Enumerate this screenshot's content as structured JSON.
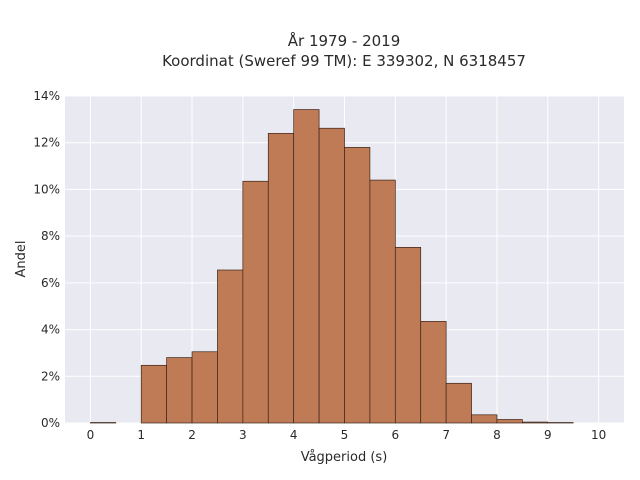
{
  "chart_data": {
    "type": "bar",
    "title_line1": "År 1979 - 2019",
    "title_line2": "Koordinat (Sweref 99 TM): E 339302, N 6318457",
    "xlabel": "Vågperiod (s)",
    "ylabel": "Andel",
    "bin_width": 0.5,
    "bin_starts": [
      0,
      0.5,
      1,
      1.5,
      2,
      2.5,
      3,
      3.5,
      4,
      4.5,
      5,
      5.5,
      6,
      6.5,
      7,
      7.5,
      8,
      8.5,
      9,
      9.5
    ],
    "values": [
      0.02,
      0,
      2.47,
      2.8,
      3.05,
      6.55,
      10.35,
      12.4,
      13.42,
      12.62,
      11.8,
      10.4,
      7.52,
      4.35,
      1.7,
      0.35,
      0.15,
      0.04,
      0.02,
      0
    ],
    "xlim": [
      -0.5,
      10.5
    ],
    "ylim": [
      0,
      14
    ],
    "x_ticks": [
      0,
      1,
      2,
      3,
      4,
      5,
      6,
      7,
      8,
      9,
      10
    ],
    "y_ticks": [
      0,
      2,
      4,
      6,
      8,
      10,
      12,
      14
    ],
    "y_tick_suffix": "%",
    "grid": true,
    "colors": {
      "bar_fill": "#bf7b56",
      "bar_stroke": "#3b2418",
      "plot_bg": "#e9e9f1",
      "grid": "#ffffff"
    }
  }
}
